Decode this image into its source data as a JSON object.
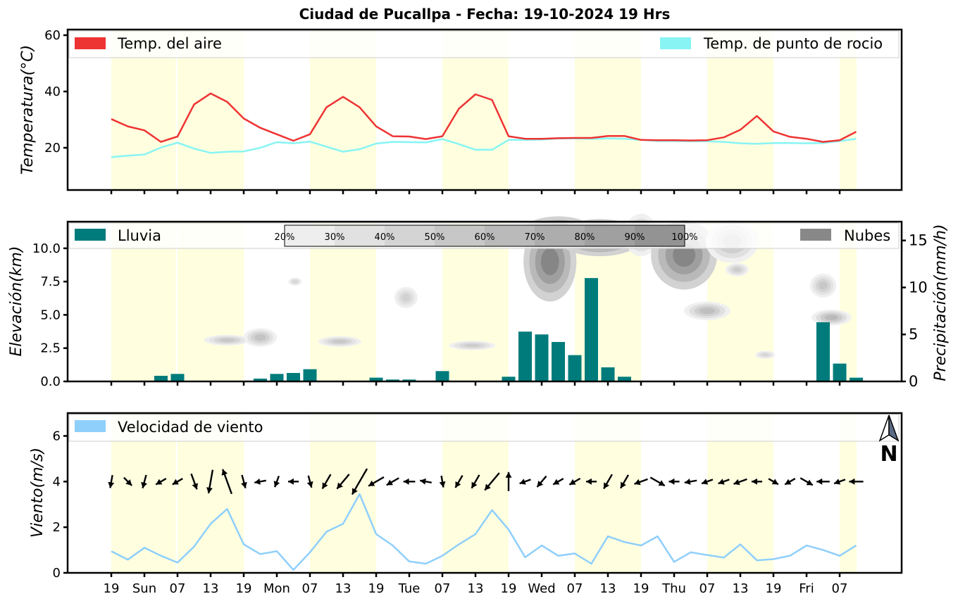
{
  "title": "Ciudad de Pucallpa   -   Fecha: 19-10-2024 19 Hrs",
  "x_tick_labels": [
    "19",
    "Sun",
    "07",
    "13",
    "19",
    "Mon",
    "07",
    "13",
    "19",
    "Tue",
    "07",
    "13",
    "19",
    "Wed",
    "07",
    "13",
    "19",
    "Thu",
    "07",
    "13",
    "19",
    "Fri",
    "07"
  ],
  "colors": {
    "air_temp": "#ee3333",
    "dew_point": "#88f4f4",
    "rain": "#007b7b",
    "clouds": "#888888",
    "wind": "#8fcffb",
    "daylight": "#ffffe0"
  },
  "chart_data": [
    {
      "type": "line",
      "ylabel": "Temperatura(°C)",
      "ylim": [
        5,
        62
      ],
      "yticks": [
        "20",
        "40",
        "60"
      ],
      "grid": false,
      "legend_placement": "top",
      "series": [
        {
          "name": "Temp. del aire",
          "values": [
            30.2,
            27.6,
            26.2,
            22.1,
            24,
            35.4,
            39.3,
            36.3,
            30.4,
            27.1,
            24.8,
            22.5,
            24.8,
            34.4,
            38.1,
            34.4,
            27.6,
            24.1,
            24,
            23.1,
            24.1,
            33.9,
            39,
            37,
            24.1,
            23.2,
            23.2,
            23.4,
            23.5,
            23.5,
            24.2,
            24.2,
            22.8,
            22.7,
            22.7,
            22.6,
            22.7,
            23.7,
            26.4,
            31.3,
            25.8,
            23.9,
            23.2,
            22.1,
            22.7,
            25.7
          ]
        },
        {
          "name": "Temp. de punto de rocio",
          "values": [
            16.7,
            17.2,
            17.6,
            20.1,
            21.8,
            19.7,
            18.2,
            18.6,
            18.7,
            20,
            22,
            21.6,
            22.2,
            20.4,
            18.6,
            19.5,
            21.5,
            22.1,
            22,
            21.9,
            23.1,
            21.3,
            19.3,
            19.3,
            22.8,
            22.8,
            22.9,
            23.3,
            23.3,
            23.2,
            23.3,
            23.2,
            22.8,
            22.4,
            22.4,
            22.3,
            22.3,
            22.1,
            21.6,
            21.4,
            21.7,
            21.7,
            21.6,
            21.7,
            22.4,
            23.2
          ]
        }
      ]
    },
    {
      "type": "bar",
      "ylabel": "Elevación(km)",
      "ylim": [
        0,
        12
      ],
      "yticks": [
        "0.0",
        "2.5",
        "5.0",
        "7.5",
        "10.0"
      ],
      "y2label": "Precipitación(mm/h)",
      "y2lim": [
        0,
        17
      ],
      "y2ticks": [
        "0",
        "5",
        "10",
        "15"
      ],
      "legend": [
        "Lluvia",
        "Nubes"
      ],
      "colorbar_labels": [
        "20%",
        "30%",
        "40%",
        "50%",
        "60%",
        "70%",
        "80%",
        "90%",
        "100%"
      ],
      "rain_values": [
        0,
        0,
        0,
        0.6,
        0.8,
        0,
        0,
        0,
        0,
        0.3,
        0.8,
        0.9,
        1.3,
        0,
        0,
        0,
        0.4,
        0.2,
        0.2,
        0,
        1.1,
        0,
        0,
        0,
        0.5,
        5.3,
        5,
        4.2,
        2.8,
        11,
        1.5,
        0.5,
        0,
        0,
        0,
        0,
        0,
        0,
        0,
        0,
        0,
        0,
        0,
        6.3,
        1.9,
        0.4
      ]
    },
    {
      "type": "line",
      "ylabel": "Viento(m/s)",
      "ylim": [
        0,
        7
      ],
      "yticks": [
        "0",
        "2",
        "4",
        "6"
      ],
      "north_label": "N",
      "series": [
        {
          "name": "Velocidad de viento",
          "values": [
            0.95,
            0.58,
            1.1,
            0.75,
            0.45,
            1.15,
            2.15,
            2.8,
            1.25,
            0.82,
            0.95,
            0.13,
            0.9,
            1.8,
            2.15,
            3.45,
            1.7,
            1.2,
            0.5,
            0.4,
            0.75,
            1.25,
            1.7,
            2.75,
            1.9,
            0.68,
            1.2,
            0.75,
            0.85,
            0.4,
            1.6,
            1.35,
            1.2,
            1.6,
            0.48,
            0.9,
            0.78,
            0.67,
            1.25,
            0.55,
            0.6,
            0.75,
            1.2,
            1.0,
            0.75,
            1.2
          ]
        }
      ],
      "wind_vectors_deg": [
        350,
        45,
        345,
        300,
        300,
        20,
        350,
        200,
        15,
        280,
        340,
        270,
        15,
        330,
        320,
        330,
        300,
        300,
        270,
        260,
        10,
        330,
        330,
        320,
        180,
        290,
        320,
        300,
        300,
        270,
        330,
        330,
        290,
        60,
        270,
        280,
        290,
        290,
        290,
        270,
        60,
        300,
        60,
        270,
        290,
        270
      ],
      "wind_vectors_len": [
        0.5,
        0.35,
        0.55,
        0.4,
        0.4,
        0.8,
        1.4,
        1.6,
        0.55,
        0.4,
        0.4,
        0.3,
        0.45,
        0.8,
        1,
        1.9,
        0.9,
        0.6,
        0.4,
        0.4,
        0.4,
        0.6,
        0.7,
        1.3,
        1,
        0.4,
        0.6,
        0.4,
        0.45,
        0.3,
        0.8,
        0.7,
        0.6,
        0.8,
        0.3,
        0.45,
        0.4,
        0.4,
        0.6,
        0.3,
        0.35,
        0.4,
        0.6,
        0.5,
        0.4,
        0.6
      ]
    }
  ]
}
